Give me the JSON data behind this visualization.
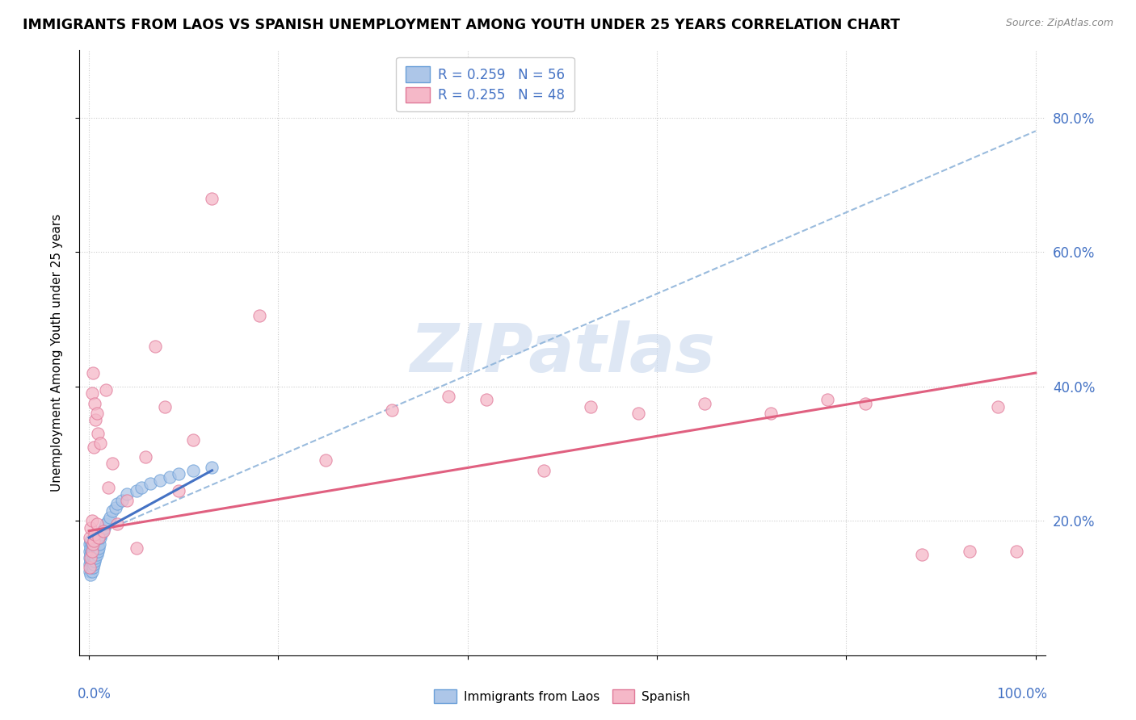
{
  "title": "IMMIGRANTS FROM LAOS VS SPANISH UNEMPLOYMENT AMONG YOUTH UNDER 25 YEARS CORRELATION CHART",
  "source": "Source: ZipAtlas.com",
  "ylabel": "Unemployment Among Youth under 25 years",
  "series1_label": "Immigrants from Laos",
  "series2_label": "Spanish",
  "color_blue_fill": "#adc6e8",
  "color_blue_edge": "#6a9fd8",
  "color_pink_fill": "#f5b8c8",
  "color_pink_edge": "#e07898",
  "color_blue_text": "#4472c4",
  "watermark_text": "ZIPatlas",
  "watermark_color": "#c8d8ee",
  "legend_r1": "R = 0.259   N = 56",
  "legend_r2": "R = 0.255   N = 48",
  "blue_trend": [
    0.0,
    0.13,
    0.175,
    0.275
  ],
  "pink_trend": [
    0.0,
    1.0,
    0.185,
    0.42
  ],
  "dashed_trend": [
    0.0,
    1.0,
    0.175,
    0.78
  ],
  "blue_x": [
    0.001,
    0.001,
    0.001,
    0.001,
    0.001,
    0.002,
    0.002,
    0.002,
    0.002,
    0.002,
    0.002,
    0.003,
    0.003,
    0.003,
    0.003,
    0.003,
    0.004,
    0.004,
    0.004,
    0.004,
    0.005,
    0.005,
    0.005,
    0.006,
    0.006,
    0.006,
    0.007,
    0.007,
    0.007,
    0.008,
    0.008,
    0.009,
    0.009,
    0.01,
    0.01,
    0.011,
    0.012,
    0.013,
    0.014,
    0.016,
    0.018,
    0.02,
    0.022,
    0.025,
    0.028,
    0.03,
    0.035,
    0.04,
    0.05,
    0.055,
    0.065,
    0.075,
    0.085,
    0.095,
    0.11,
    0.13
  ],
  "blue_y": [
    0.125,
    0.135,
    0.145,
    0.155,
    0.165,
    0.12,
    0.13,
    0.14,
    0.15,
    0.16,
    0.17,
    0.125,
    0.135,
    0.145,
    0.155,
    0.165,
    0.13,
    0.14,
    0.15,
    0.16,
    0.135,
    0.145,
    0.155,
    0.14,
    0.15,
    0.16,
    0.145,
    0.155,
    0.165,
    0.15,
    0.16,
    0.155,
    0.165,
    0.16,
    0.175,
    0.165,
    0.175,
    0.18,
    0.185,
    0.19,
    0.195,
    0.2,
    0.205,
    0.215,
    0.22,
    0.225,
    0.23,
    0.24,
    0.245,
    0.25,
    0.255,
    0.26,
    0.265,
    0.27,
    0.275,
    0.28
  ],
  "pink_x": [
    0.001,
    0.001,
    0.002,
    0.002,
    0.003,
    0.003,
    0.003,
    0.004,
    0.004,
    0.005,
    0.005,
    0.006,
    0.006,
    0.007,
    0.008,
    0.008,
    0.009,
    0.01,
    0.012,
    0.015,
    0.018,
    0.02,
    0.025,
    0.03,
    0.04,
    0.05,
    0.06,
    0.07,
    0.08,
    0.095,
    0.11,
    0.13,
    0.18,
    0.25,
    0.32,
    0.38,
    0.42,
    0.48,
    0.53,
    0.58,
    0.65,
    0.72,
    0.78,
    0.82,
    0.88,
    0.93,
    0.96,
    0.98
  ],
  "pink_y": [
    0.13,
    0.175,
    0.145,
    0.19,
    0.155,
    0.2,
    0.39,
    0.165,
    0.42,
    0.17,
    0.31,
    0.18,
    0.375,
    0.35,
    0.195,
    0.36,
    0.33,
    0.175,
    0.315,
    0.185,
    0.395,
    0.25,
    0.285,
    0.195,
    0.23,
    0.16,
    0.295,
    0.46,
    0.37,
    0.245,
    0.32,
    0.68,
    0.505,
    0.29,
    0.365,
    0.385,
    0.38,
    0.275,
    0.37,
    0.36,
    0.375,
    0.36,
    0.38,
    0.375,
    0.15,
    0.155,
    0.37,
    0.155
  ]
}
